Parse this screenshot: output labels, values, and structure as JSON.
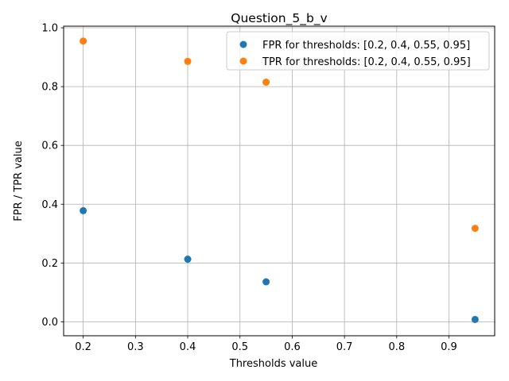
{
  "chart_data": {
    "type": "scatter",
    "title": "Question_5_b_v",
    "xlabel": "Thresholds value",
    "ylabel": "FPR / TPR value",
    "xlim": [
      0.1625,
      0.9875
    ],
    "ylim": [
      -0.0475,
      1.0055
    ],
    "xticks": [
      "0.2",
      "0.3",
      "0.4",
      "0.5",
      "0.6",
      "0.7",
      "0.8",
      "0.9"
    ],
    "xtick_values": [
      0.2,
      0.3,
      0.4,
      0.5,
      0.6,
      0.7,
      0.8,
      0.9
    ],
    "yticks": [
      "0.0",
      "0.2",
      "0.4",
      "0.6",
      "0.8",
      "1.0"
    ],
    "ytick_values": [
      0.0,
      0.2,
      0.4,
      0.6,
      0.8,
      1.0
    ],
    "grid": true,
    "legend_position": "top-right",
    "x": [
      0.2,
      0.4,
      0.55,
      0.95
    ],
    "series": [
      {
        "name": "FPR for thresholds: [0.2, 0.4, 0.55, 0.95]",
        "color": "#1f77b4",
        "values": [
          0.378,
          0.213,
          0.136,
          0.008
        ]
      },
      {
        "name": "TPR for thresholds: [0.2, 0.4, 0.55, 0.95]",
        "color": "#ff7f0e",
        "values": [
          0.955,
          0.886,
          0.815,
          0.318
        ]
      }
    ]
  }
}
